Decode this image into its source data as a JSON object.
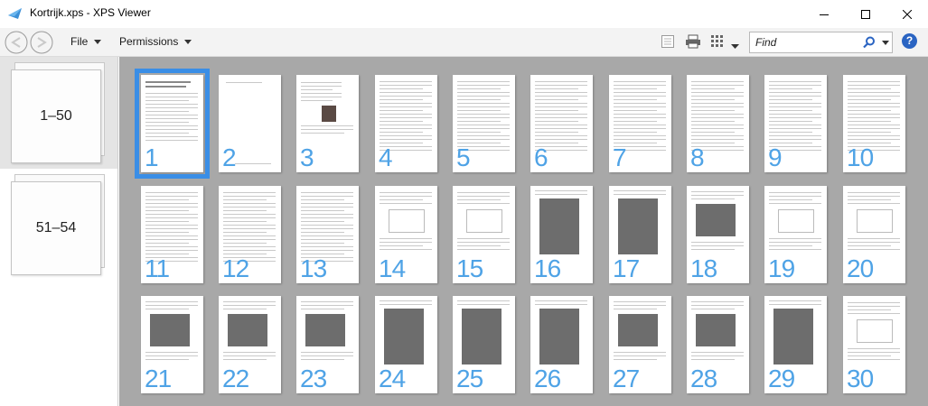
{
  "window": {
    "title": "Kortrijk.xps - XPS Viewer"
  },
  "menus": [
    {
      "label": "File"
    },
    {
      "label": "Permissions"
    }
  ],
  "search": {
    "placeholder": "Find"
  },
  "help": {
    "label": "?"
  },
  "sidebar": {
    "ranges": [
      {
        "label": "1–50",
        "selected": true
      },
      {
        "label": "51–54",
        "selected": false
      }
    ]
  },
  "pages": [
    {
      "num": "1",
      "kind": "toc",
      "selected": true
    },
    {
      "num": "2",
      "kind": "blank"
    },
    {
      "num": "3",
      "kind": "portrait"
    },
    {
      "num": "4",
      "kind": "text"
    },
    {
      "num": "5",
      "kind": "text"
    },
    {
      "num": "6",
      "kind": "text"
    },
    {
      "num": "7",
      "kind": "text"
    },
    {
      "num": "8",
      "kind": "text"
    },
    {
      "num": "9",
      "kind": "text"
    },
    {
      "num": "10",
      "kind": "text"
    },
    {
      "num": "11",
      "kind": "text"
    },
    {
      "num": "12",
      "kind": "text"
    },
    {
      "num": "13",
      "kind": "text"
    },
    {
      "num": "14",
      "kind": "sketch"
    },
    {
      "num": "15",
      "kind": "sketch"
    },
    {
      "num": "16",
      "kind": "photo-large"
    },
    {
      "num": "17",
      "kind": "photo-large"
    },
    {
      "num": "18",
      "kind": "photo"
    },
    {
      "num": "19",
      "kind": "sketch"
    },
    {
      "num": "20",
      "kind": "sketch"
    },
    {
      "num": "21",
      "kind": "photo"
    },
    {
      "num": "22",
      "kind": "photo"
    },
    {
      "num": "23",
      "kind": "photo"
    },
    {
      "num": "24",
      "kind": "photo-large"
    },
    {
      "num": "25",
      "kind": "photo-large"
    },
    {
      "num": "26",
      "kind": "photo-large"
    },
    {
      "num": "27",
      "kind": "photo"
    },
    {
      "num": "28",
      "kind": "photo"
    },
    {
      "num": "29",
      "kind": "photo-large"
    },
    {
      "num": "30",
      "kind": "sketch"
    }
  ],
  "colors": {
    "accent": "#3a8ee6",
    "page_number": "#4fa3e6",
    "viewer_background": "#a8a8a8"
  }
}
